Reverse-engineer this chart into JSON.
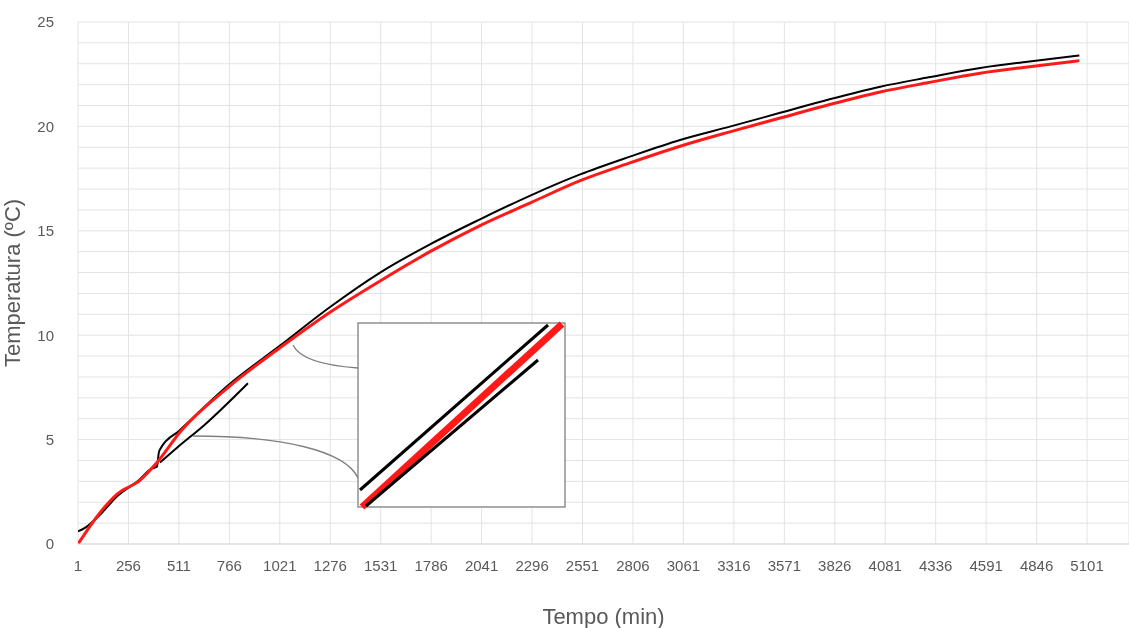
{
  "chart_data": {
    "type": "line",
    "xlabel": "Tempo (min)",
    "ylabel": "Temperatura (ºC)",
    "xlim": [
      1,
      5313
    ],
    "xticks": [
      1,
      256,
      511,
      766,
      1021,
      1276,
      1531,
      1786,
      2041,
      2296,
      2551,
      2806,
      3061,
      3316,
      3571,
      3826,
      4081,
      4336,
      4591,
      4846,
      5101
    ],
    "ylim": [
      0,
      25
    ],
    "yticks": [
      0,
      {
        "value": 1,
        "label": null
      },
      {
        "value": 2,
        "label": null
      },
      {
        "value": 3,
        "label": null
      },
      {
        "value": 4,
        "label": null
      },
      5,
      {
        "value": 6,
        "label": null
      },
      {
        "value": 7,
        "label": null
      },
      {
        "value": 8,
        "label": null
      },
      {
        "value": 9,
        "label": null
      },
      10,
      {
        "value": 11,
        "label": null
      },
      {
        "value": 12,
        "label": null
      },
      {
        "value": 13,
        "label": null
      },
      {
        "value": 14,
        "label": null
      },
      15,
      {
        "value": 16,
        "label": null
      },
      {
        "value": 17,
        "label": null
      },
      {
        "value": 18,
        "label": null
      },
      {
        "value": 19,
        "label": null
      },
      20,
      {
        "value": 21,
        "label": null
      },
      {
        "value": 22,
        "label": null
      },
      {
        "value": 23,
        "label": null
      },
      {
        "value": 24,
        "label": null
      },
      25
    ],
    "grid": true,
    "marker": "none",
    "line_style": "solid",
    "series": [
      {
        "color": "#000000",
        "x": [
          1,
          40,
          112,
          200,
          314,
          370,
          400,
          410,
          420,
          516,
          760,
          1022,
          1275,
          1528,
          1780,
          2033,
          2290,
          2539,
          2790,
          3044,
          3300,
          3550,
          3800,
          4056,
          4300,
          4561,
          4800,
          5062
        ],
        "values": [
          0.6,
          0.8,
          1.4,
          2.3,
          3.1,
          3.6,
          3.7,
          4.4,
          4.6,
          5.45,
          7.6,
          9.5,
          11.35,
          13.0,
          14.35,
          15.55,
          16.7,
          17.7,
          18.55,
          19.35,
          20.0,
          20.65,
          21.3,
          21.9,
          22.35,
          22.8,
          23.1,
          23.4
        ]
      },
      {
        "color": "#000000",
        "x": [
          415,
          500,
          640,
          860
        ],
        "values": [
          3.9,
          4.6,
          5.7,
          7.7
        ]
      },
      {
        "color": "#ff1a1a",
        "x": [
          1,
          112,
          200,
          314,
          400,
          516,
          760,
          1022,
          1275,
          1528,
          1780,
          2033,
          2290,
          2539,
          2790,
          3044,
          3300,
          3550,
          3800,
          4056,
          4300,
          4561,
          4800,
          5062
        ],
        "values": [
          0,
          1.5,
          2.4,
          3.05,
          3.9,
          5.35,
          7.5,
          9.4,
          11.1,
          12.6,
          14.0,
          15.25,
          16.35,
          17.4,
          18.25,
          19.05,
          19.75,
          20.4,
          21.05,
          21.65,
          22.1,
          22.55,
          22.85,
          23.15
        ]
      }
    ]
  }
}
